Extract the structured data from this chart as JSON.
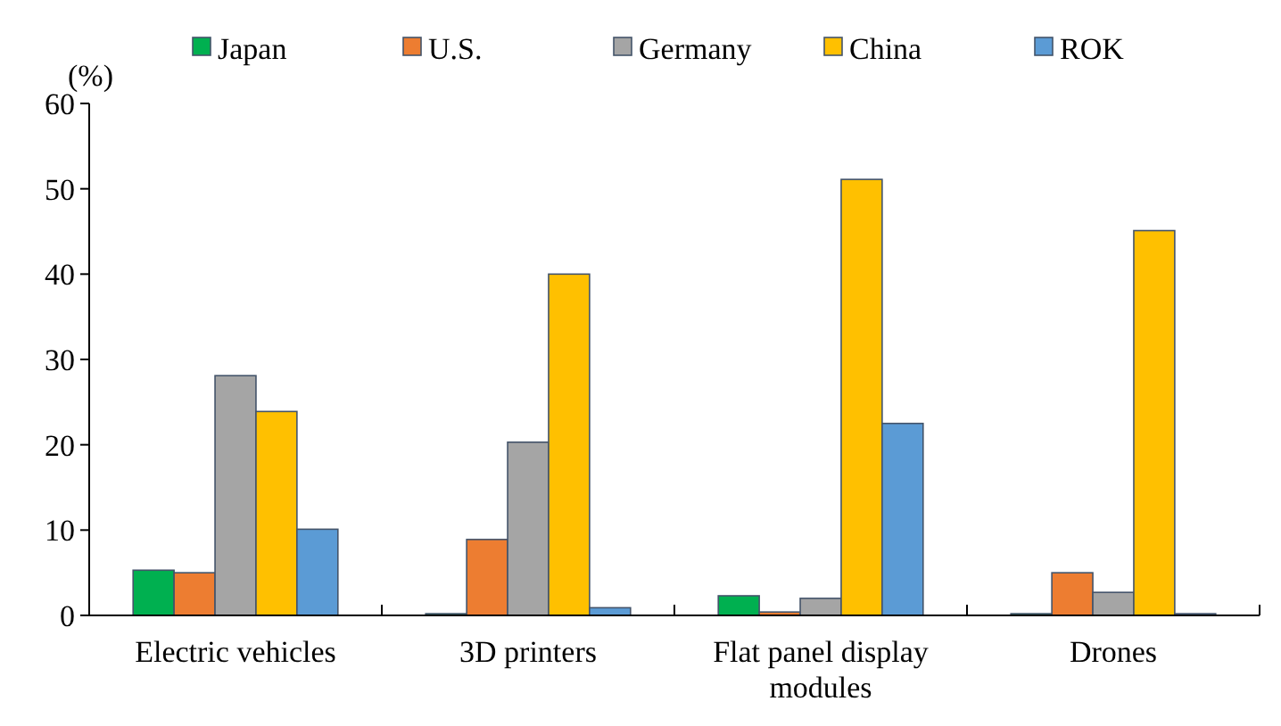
{
  "chart_data": {
    "type": "bar",
    "ylabel": "(%)",
    "categories": [
      "Electric vehicles",
      "3D printers",
      "Flat panel display modules",
      "Drones"
    ],
    "series": [
      {
        "name": "Japan",
        "color": "#00b050",
        "values": [
          5.3,
          0.2,
          2.3,
          0.2
        ]
      },
      {
        "name": "U.S.",
        "color": "#ed7d31",
        "values": [
          5.0,
          8.9,
          0.4,
          5.0
        ]
      },
      {
        "name": "Germany",
        "color": "#a5a5a5",
        "values": [
          28.1,
          20.3,
          2.0,
          2.7
        ]
      },
      {
        "name": "China",
        "color": "#ffc000",
        "values": [
          23.9,
          40.0,
          51.1,
          45.1
        ]
      },
      {
        "name": "ROK",
        "color": "#5b9bd5",
        "values": [
          10.1,
          0.9,
          22.5,
          0.2
        ]
      }
    ],
    "ylim": [
      0,
      60
    ],
    "yticks": [
      0,
      10,
      20,
      30,
      40,
      50,
      60
    ],
    "grid": false,
    "legend": "top"
  }
}
